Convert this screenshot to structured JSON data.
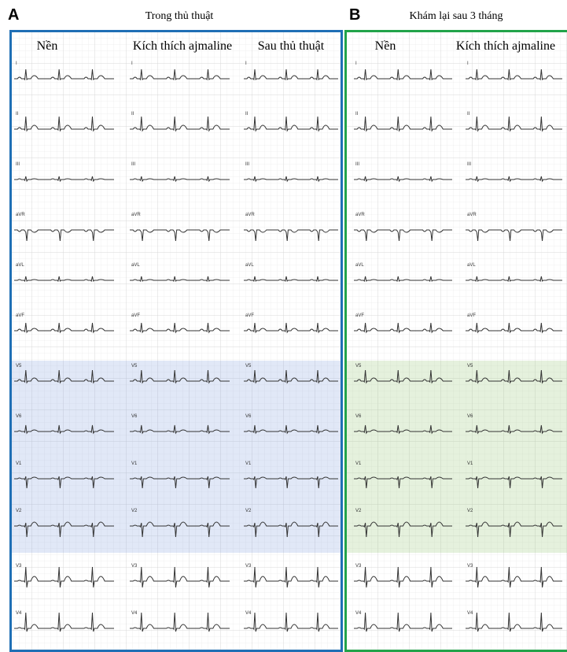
{
  "panels": [
    {
      "label": "A",
      "title": "Trong thủ thuật",
      "columns": [
        "Nền",
        "Kích thích ajmaline",
        "Sau thủ thuật"
      ]
    },
    {
      "label": "B",
      "title": "Khám lại sau 3 tháng",
      "columns": [
        "Nền",
        "Kích thích ajmaline"
      ]
    }
  ],
  "leads": [
    "I",
    "II",
    "III",
    "aVR",
    "aVL",
    "aVF",
    "V5",
    "V6",
    "V1",
    "V2",
    "V3",
    "V4"
  ]
}
